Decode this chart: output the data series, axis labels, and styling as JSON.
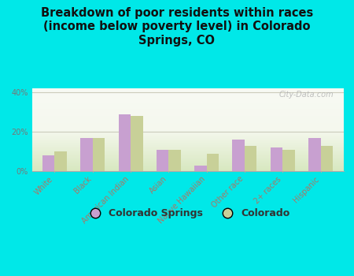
{
  "title": "Breakdown of poor residents within races\n(income below poverty level) in Colorado\nSprings, CO",
  "categories": [
    "White",
    "Black",
    "American Indian",
    "Asian",
    "Native Hawaiian",
    "Other race",
    "2+ races",
    "Hispanic"
  ],
  "colorado_springs": [
    8,
    17,
    29,
    11,
    3,
    16,
    12,
    17
  ],
  "colorado": [
    10,
    17,
    28,
    11,
    9,
    13,
    11,
    13
  ],
  "bar_color_cs": "#c8a0d0",
  "bar_color_co": "#c8d098",
  "background_outer": "#00e8e8",
  "ylim": [
    0,
    42
  ],
  "yticks": [
    0,
    20,
    40
  ],
  "ytick_labels": [
    "0%",
    "20%",
    "40%"
  ],
  "watermark": "City-Data.com",
  "legend_cs": "Colorado Springs",
  "legend_co": "Colorado",
  "title_fontsize": 10.5,
  "tick_fontsize": 7,
  "legend_fontsize": 9,
  "grid_color": "#ddddcc",
  "grid20_color": "#d0c8c0"
}
